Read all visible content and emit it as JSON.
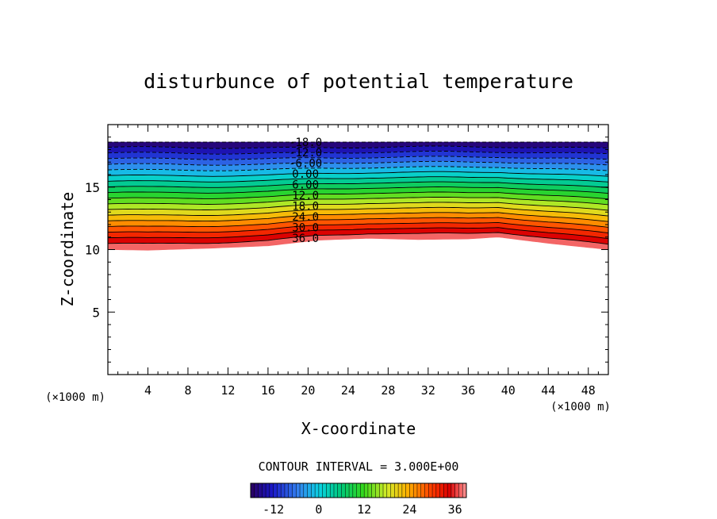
{
  "chart_data": {
    "type": "contour",
    "title": "disturbunce of potential temperature",
    "xlabel": "X-coordinate",
    "ylabel": "Z-coordinate",
    "x_unit_label": "(×1000 m)",
    "y_unit_label": "(×1000 m)",
    "xlim": [
      0,
      50
    ],
    "ylim": [
      0,
      20
    ],
    "x_ticks": [
      4,
      8,
      12,
      16,
      20,
      24,
      28,
      32,
      36,
      40,
      44,
      48
    ],
    "x_tick_labels": [
      "4",
      "8",
      "12",
      "16",
      "20",
      "24",
      "28",
      "32",
      "36",
      "40",
      "44",
      "48"
    ],
    "y_ticks": [
      5,
      10,
      15
    ],
    "y_tick_labels": [
      "5",
      "10",
      "15"
    ],
    "contour_interval_text": "CONTOUR INTERVAL = 3.000E+00",
    "contour_interval": 3.0,
    "level_min": -18,
    "level_max": 39,
    "field_top_z": 18.6,
    "field_bottom_z": [
      [
        0,
        10.0
      ],
      [
        4,
        9.95
      ],
      [
        10,
        10.1
      ],
      [
        16,
        10.3
      ],
      [
        21,
        10.75
      ],
      [
        26,
        10.9
      ],
      [
        31,
        10.8
      ],
      [
        36,
        10.85
      ],
      [
        39,
        11.0
      ],
      [
        44,
        10.5
      ],
      [
        50,
        10.0
      ]
    ],
    "contour_labels": [
      {
        "text": "-18.0",
        "level": -18
      },
      {
        "text": "-12.0",
        "level": -12
      },
      {
        "text": "-6.00",
        "level": -6
      },
      {
        "text": "0.00",
        "level": 0
      },
      {
        "text": "6.00",
        "level": 6
      },
      {
        "text": "12.0",
        "level": 12
      },
      {
        "text": "18.0",
        "level": 18
      },
      {
        "text": "24.0",
        "level": 24
      },
      {
        "text": "30.0",
        "level": 30
      },
      {
        "text": "36.0",
        "level": 36
      }
    ],
    "label_x": 18,
    "colorbar": {
      "min": -18,
      "max": 39,
      "tick_values": [
        -12,
        0,
        12,
        24,
        36
      ],
      "tick_labels": [
        "-12",
        "0",
        "12",
        "24",
        "36"
      ]
    }
  }
}
